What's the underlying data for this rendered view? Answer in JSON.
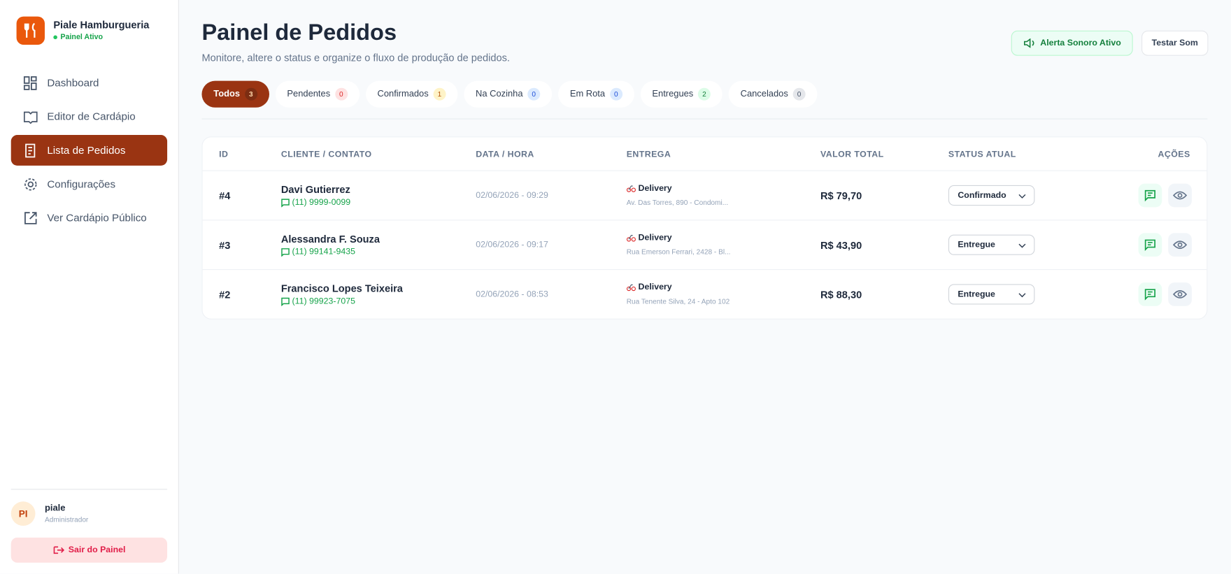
{
  "sidebar": {
    "brand": "Piale Hamburgueria",
    "status": "Painel Ativo",
    "nav": [
      "Dashboard",
      "Editor de Cardápio",
      "Lista de Pedidos",
      "Configurações",
      "Ver Cardápio Público"
    ],
    "user": {
      "initials": "PI",
      "name": "piale",
      "role": "Administrador"
    },
    "logout": "Sair do Painel"
  },
  "header": {
    "title": "Painel de Pedidos",
    "subtitle": "Monitore, altere o status e organize o fluxo de produção de pedidos.",
    "alert": "Alerta Sonoro Ativo",
    "test": "Testar Som"
  },
  "tabs": [
    {
      "label": "Todos",
      "count": 3
    },
    {
      "label": "Pendentes",
      "count": 0
    },
    {
      "label": "Confirmados",
      "count": 1
    },
    {
      "label": "Na Cozinha",
      "count": 0
    },
    {
      "label": "Em Rota",
      "count": 0
    },
    {
      "label": "Entregues",
      "count": 2
    },
    {
      "label": "Cancelados",
      "count": 0
    }
  ],
  "table": {
    "columns": [
      "ID",
      "CLIENTE / CONTATO",
      "DATA / HORA",
      "ENTREGA",
      "VALOR TOTAL",
      "STATUS ATUAL",
      "AÇÕES"
    ],
    "rows": [
      {
        "id": "#4",
        "name": "Davi Gutierrez",
        "phone": "(11) 9999-0099",
        "datetime": "02/06/2026 - 09:29",
        "delivery": "Delivery",
        "address": "Av. Das Torres, 890 - Condomi...",
        "total": "R$ 79,70",
        "status": "Confirmado"
      },
      {
        "id": "#3",
        "name": "Alessandra F. Souza",
        "phone": "(11) 99141-9435",
        "datetime": "02/06/2026 - 09:17",
        "delivery": "Delivery",
        "address": "Rua Emerson Ferrari, 2428 - Bl...",
        "total": "R$ 43,90",
        "status": "Entregue"
      },
      {
        "id": "#2",
        "name": "Francisco Lopes Teixeira",
        "phone": "(11) 99923-7075",
        "datetime": "02/06/2026 - 08:53",
        "delivery": "Delivery",
        "address": "Rua Tenente Silva, 24 - Apto 102",
        "total": "R$ 88,30",
        "status": "Entregue"
      }
    ]
  }
}
